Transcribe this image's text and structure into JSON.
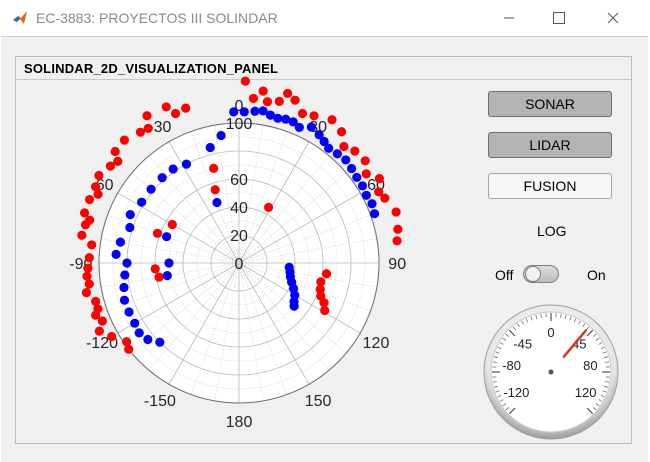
{
  "window": {
    "title": "EC-3883: PROYECTOS III SOLINDAR",
    "app_icon": "matlab-icon"
  },
  "panel": {
    "title": "SOLINDAR_2D_VISUALIZATION_PANEL"
  },
  "buttons": {
    "sonar": "SONAR",
    "lidar": "LIDAR",
    "fusion": "FUSION"
  },
  "log": {
    "label": "LOG",
    "off_label": "Off",
    "on_label": "On",
    "state": "Off"
  },
  "gauge": {
    "tick_labels": [
      "-120",
      "-80",
      "-45",
      "0",
      "45",
      "80",
      "120"
    ],
    "needle_value": 40,
    "range": [
      -135,
      135
    ]
  },
  "colors": {
    "sonar": "#0000ff",
    "lidar": "#ff0000",
    "needle": "#e03020"
  },
  "chart_data": {
    "type": "scatter",
    "coordinate_system": "polar",
    "theta_zero": "top",
    "theta_direction": "clockwise",
    "theta_ticks": [
      0,
      30,
      60,
      90,
      120,
      150,
      180,
      -150,
      -120,
      -90,
      -60,
      -30
    ],
    "r_ticks": [
      0,
      20,
      40,
      60,
      100
    ],
    "rlim": [
      0,
      100
    ],
    "grid": true,
    "series": [
      {
        "name": "LIDAR",
        "color": "#ff0000",
        "points": [
          [
            -19,
            117
          ],
          [
            -23,
            116
          ],
          [
            -25,
            123
          ],
          [
            -32,
            124
          ],
          [
            -34,
            116
          ],
          [
            -37,
            117
          ],
          [
            -43,
            120
          ],
          [
            -48,
            119
          ],
          [
            -50,
            113
          ],
          [
            -53,
            115
          ],
          [
            -58,
            118
          ],
          [
            -62,
            116
          ],
          [
            -64,
            112
          ],
          [
            -67,
            116
          ],
          [
            -72,
            116
          ],
          [
            -74,
            111
          ],
          [
            -76,
            113
          ],
          [
            -80,
            114
          ],
          [
            -83,
            106
          ],
          [
            -88,
            107
          ],
          [
            -92,
            108
          ],
          [
            -95,
            109
          ],
          [
            -98,
            108
          ],
          [
            -101,
            111
          ],
          [
            -105,
            106
          ],
          [
            -108,
            106
          ],
          [
            -110,
            109
          ],
          [
            -113,
            106
          ],
          [
            -116,
            111
          ],
          [
            -120,
            105
          ],
          [
            -125,
            98
          ],
          [
            -128,
            100
          ],
          [
            -94,
            60
          ],
          [
            -100,
            58
          ],
          [
            -60,
            55
          ],
          [
            -70,
            62
          ],
          [
            -18,
            55
          ],
          [
            -15,
            70
          ],
          [
            28,
            45
          ],
          [
            2,
            130
          ],
          [
            5,
            118
          ],
          [
            8,
            124
          ],
          [
            10,
            117
          ],
          [
            14,
            119
          ],
          [
            16,
            126
          ],
          [
            19,
            123
          ],
          [
            23,
            116
          ],
          [
            27,
            118
          ],
          [
            33,
            122
          ],
          [
            38,
            119
          ],
          [
            42,
            112
          ],
          [
            46,
            115
          ],
          [
            51,
            116
          ],
          [
            55,
            111
          ],
          [
            59,
            117
          ],
          [
            63,
            112
          ],
          [
            66,
            114
          ],
          [
            72,
            118
          ],
          [
            78,
            116
          ],
          [
            82,
            114
          ],
          [
            97,
            63
          ],
          [
            103,
            60
          ],
          [
            108,
            61
          ],
          [
            112,
            63
          ],
          [
            115,
            67
          ],
          [
            119,
            70
          ]
        ]
      },
      {
        "name": "SONAR",
        "color": "#0000ff",
        "points": [
          [
            2,
            108
          ],
          [
            6,
            109
          ],
          [
            9,
            110
          ],
          [
            12,
            108
          ],
          [
            15,
            107
          ],
          [
            18,
            108
          ],
          [
            21,
            108
          ],
          [
            24,
            106
          ],
          [
            28,
            110
          ],
          [
            32,
            108
          ],
          [
            35,
            106
          ],
          [
            38,
            104
          ],
          [
            42,
            105
          ],
          [
            46,
            106
          ],
          [
            50,
            105
          ],
          [
            54,
            104
          ],
          [
            58,
            104
          ],
          [
            62,
            103
          ],
          [
            66,
            104
          ],
          [
            70,
            103
          ],
          [
            -2,
            108
          ],
          [
            -8,
            92
          ],
          [
            -14,
            85
          ],
          [
            -28,
            80
          ],
          [
            -35,
            82
          ],
          [
            -42,
            82
          ],
          [
            -50,
            82
          ],
          [
            -58,
            82
          ],
          [
            -66,
            85
          ],
          [
            -72,
            82
          ],
          [
            -80,
            86
          ],
          [
            -86,
            88
          ],
          [
            -90,
            80
          ],
          [
            -96,
            82
          ],
          [
            -102,
            84
          ],
          [
            -108,
            86
          ],
          [
            -114,
            86
          ],
          [
            -120,
            86
          ],
          [
            -125,
            87
          ],
          [
            -130,
            85
          ],
          [
            -135,
            80
          ],
          [
            -90,
            50
          ],
          [
            -100,
            52
          ],
          [
            -70,
            55
          ],
          [
            -20,
            46
          ],
          [
            95,
            36
          ],
          [
            100,
            37
          ],
          [
            105,
            38
          ],
          [
            110,
            40
          ],
          [
            115,
            43
          ],
          [
            120,
            46
          ],
          [
            125,
            48
          ],
          [
            128,
            50
          ]
        ]
      }
    ]
  }
}
